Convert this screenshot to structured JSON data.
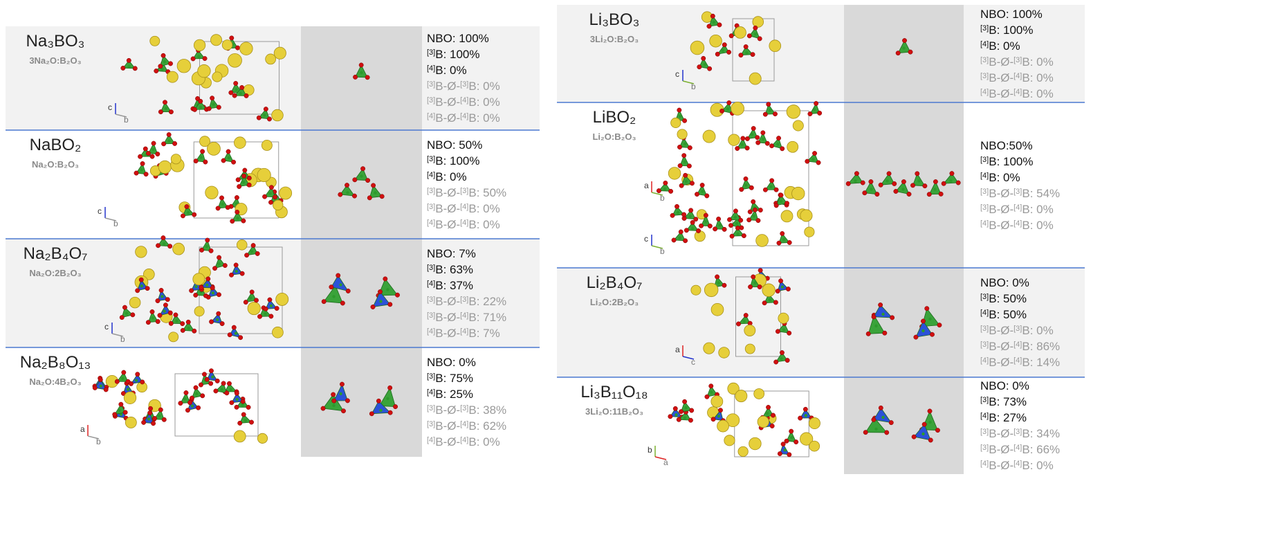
{
  "panels": [
    {
      "rows": [
        {
          "formula": "Na₃BO₃",
          "composition": "3Na₂O:B₂O₃",
          "axes": [
            [
              "c",
              "b"
            ]
          ],
          "stats": [
            [
              {
                "t": "NBO: 100%"
              }
            ],
            [
              {
                "s": "[3]",
                "t": "B: 100%"
              }
            ],
            [
              {
                "s": "[4]",
                "t": "B: 0%"
              }
            ],
            [
              {
                "s": "[3]",
                "t": "B-Ø-"
              },
              {
                "s": "[3]",
                "t": "B: 0%"
              }
            ],
            [
              {
                "s": "[3]",
                "t": "B-Ø-"
              },
              {
                "s": "[4]",
                "t": "B: 0%"
              }
            ],
            [
              {
                "s": "[4]",
                "t": "B-Ø-"
              },
              {
                "s": "[4]",
                "t": "B: 0%"
              }
            ]
          ]
        },
        {
          "formula": "NaBO₂",
          "composition": "Na₂O:B₂O₃",
          "axes": [
            [
              "c",
              "b"
            ]
          ],
          "stats": [
            [
              {
                "t": "NBO: 50%"
              }
            ],
            [
              {
                "s": "[3]",
                "t": "B: 100%"
              }
            ],
            [
              {
                "s": "[4]",
                "t": "B: 0%"
              }
            ],
            [
              {
                "s": "[3]",
                "t": "B-Ø-"
              },
              {
                "s": "[3]",
                "t": "B: 50%"
              }
            ],
            [
              {
                "s": "[3]",
                "t": "B-Ø-"
              },
              {
                "s": "[4]",
                "t": "B: 0%"
              }
            ],
            [
              {
                "s": "[4]",
                "t": "B-Ø-"
              },
              {
                "s": "[4]",
                "t": "B: 0%"
              }
            ]
          ]
        },
        {
          "formula": "Na₂B₄O₇",
          "composition": "Na₂O:2B₂O₃",
          "axes": [
            [
              "c",
              "b"
            ]
          ],
          "stats": [
            [
              {
                "t": "NBO: 7%"
              }
            ],
            [
              {
                "s": "[3]",
                "t": "B: 63%"
              }
            ],
            [
              {
                "s": "[4]",
                "t": "B: 37%"
              }
            ],
            [
              {
                "s": "[3]",
                "t": "B-Ø-"
              },
              {
                "s": "[3]",
                "t": "B: 22%"
              }
            ],
            [
              {
                "s": "[3]",
                "t": "B-Ø-"
              },
              {
                "s": "[4]",
                "t": "B: 71%"
              }
            ],
            [
              {
                "s": "[4]",
                "t": "B-Ø-"
              },
              {
                "s": "[4]",
                "t": "B: 7%"
              }
            ]
          ]
        },
        {
          "formula": "Na₂B₈O₁₃",
          "composition": "Na₂O:4B₂O₃",
          "axes": [
            [
              "a",
              "b"
            ]
          ],
          "stats": [
            [
              {
                "t": "NBO: 0%"
              }
            ],
            [
              {
                "s": "[3]",
                "t": "B: 75%"
              }
            ],
            [
              {
                "s": "[4]",
                "t": "B: 25%"
              }
            ],
            [
              {
                "s": "[3]",
                "t": "B-Ø-"
              },
              {
                "s": "[3]",
                "t": "B: 38%"
              }
            ],
            [
              {
                "s": "[3]",
                "t": "B-Ø-"
              },
              {
                "s": "[4]",
                "t": "B: 62%"
              }
            ],
            [
              {
                "s": "[4]",
                "t": "B-Ø-"
              },
              {
                "s": "[4]",
                "t": "B: 0%"
              }
            ]
          ]
        }
      ]
    },
    {
      "rows": [
        {
          "formula": "Li₃BO₃",
          "composition": "3Li₂O:B₂O₃",
          "axes": [
            [
              "c",
              "b"
            ]
          ],
          "stats": [
            [
              {
                "t": "NBO: 100%"
              }
            ],
            [
              {
                "s": "[3]",
                "t": "B: 100%"
              }
            ],
            [
              {
                "s": "[4]",
                "t": "B: 0%"
              }
            ],
            [
              {
                "s": "[3]",
                "t": "B-Ø-"
              },
              {
                "s": "[3]",
                "t": "B: 0%"
              }
            ],
            [
              {
                "s": "[3]",
                "t": "B-Ø-"
              },
              {
                "s": "[4]",
                "t": "B: 0%"
              }
            ],
            [
              {
                "s": "[4]",
                "t": "B-Ø-"
              },
              {
                "s": "[4]",
                "t": "B: 0%"
              }
            ]
          ]
        },
        {
          "formula": "LiBO₂",
          "composition": "Li₂O:B₂O₃",
          "axes": [
            [
              "a",
              "b"
            ],
            [
              "c",
              "b"
            ]
          ],
          "stats": [
            [
              {
                "t": "NBO:50%"
              }
            ],
            [
              {
                "s": "[3]",
                "t": "B: 100%"
              }
            ],
            [
              {
                "s": "[4]",
                "t": "B: 0%"
              }
            ],
            [
              {
                "s": "[3]",
                "t": "B-Ø-"
              },
              {
                "s": "[3]",
                "t": "B: 54%"
              }
            ],
            [
              {
                "s": "[3]",
                "t": "B-Ø-"
              },
              {
                "s": "[4]",
                "t": "B: 0%"
              }
            ],
            [
              {
                "s": "[4]",
                "t": "B-Ø-"
              },
              {
                "s": "[4]",
                "t": "B: 0%"
              }
            ]
          ]
        },
        {
          "formula": "Li₂B₄O₇",
          "composition": "Li₂O:2B₂O₃",
          "axes": [
            [
              "a",
              "c"
            ]
          ],
          "stats": [
            [
              {
                "t": "NBO: 0%"
              }
            ],
            [
              {
                "s": "[3]",
                "t": "B: 50%"
              }
            ],
            [
              {
                "s": "[4]",
                "t": "B: 50%"
              }
            ],
            [
              {
                "s": "[3]",
                "t": "B-Ø-"
              },
              {
                "s": "[3]",
                "t": "B: 0%"
              }
            ],
            [
              {
                "s": "[3]",
                "t": "B-Ø-"
              },
              {
                "s": "[4]",
                "t": "B: 86%"
              }
            ],
            [
              {
                "s": "[4]",
                "t": "B-Ø-"
              },
              {
                "s": "[4]",
                "t": "B: 14%"
              }
            ]
          ]
        },
        {
          "formula": "Li₃B₁₁O₁₈",
          "composition": "3Li₂O:11B₂O₃",
          "axes": [
            [
              "b",
              "a"
            ]
          ],
          "stats": [
            [
              {
                "t": "NBO: 0%"
              }
            ],
            [
              {
                "s": "[3]",
                "t": "B: 73%"
              }
            ],
            [
              {
                "s": "[4]",
                "t": "B: 27%"
              }
            ],
            [
              {
                "s": "[3]",
                "t": "B-Ø-"
              },
              {
                "s": "[3]",
                "t": "B: 34%"
              }
            ],
            [
              {
                "s": "[3]",
                "t": "B-Ø-"
              },
              {
                "s": "[4]",
                "t": "B: 66%"
              }
            ],
            [
              {
                "s": "[4]",
                "t": "B-Ø-"
              },
              {
                "s": "[4]",
                "t": "B: 0%"
              }
            ]
          ]
        }
      ]
    }
  ]
}
